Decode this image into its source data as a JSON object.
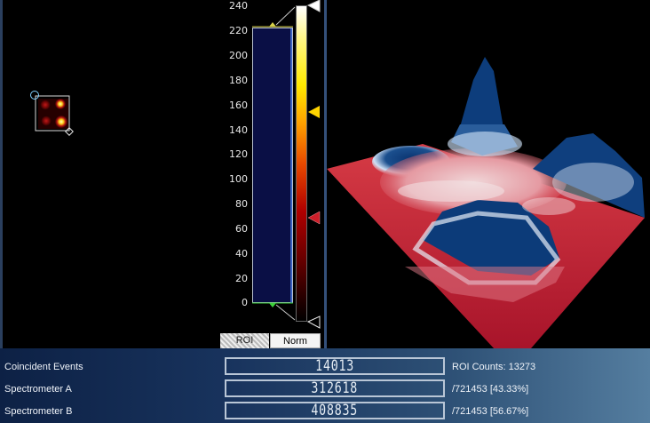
{
  "scale": {
    "ticks": [
      "240",
      "220",
      "200",
      "180",
      "160",
      "140",
      "120",
      "100",
      "80",
      "60",
      "40",
      "20",
      "0"
    ],
    "upper_marker": "220",
    "lower_marker": "0"
  },
  "tabs": {
    "roi": "ROI",
    "norm": "Norm"
  },
  "stats": {
    "coincident_label": "Coincident Events",
    "coincident_value": "14013",
    "roi_counts": "ROI Counts: 13273",
    "spec_a_label": "Spectrometer A",
    "spec_a_value": "312618",
    "spec_a_total": "/721453 [43.33%]",
    "spec_b_label": "Spectrometer B",
    "spec_b_value": "408835",
    "spec_b_total": "/721453 [56.67%]"
  },
  "colors": {
    "background": "#000000",
    "roi_box": "#d8d8d8",
    "hist_fill": "#0a0f45",
    "marker_high": "#ffffff",
    "marker_mid": "#ffd400",
    "marker_low": "#cc1f2a",
    "surface_peak": "#0b3a78",
    "surface_base": "#c8203a"
  }
}
